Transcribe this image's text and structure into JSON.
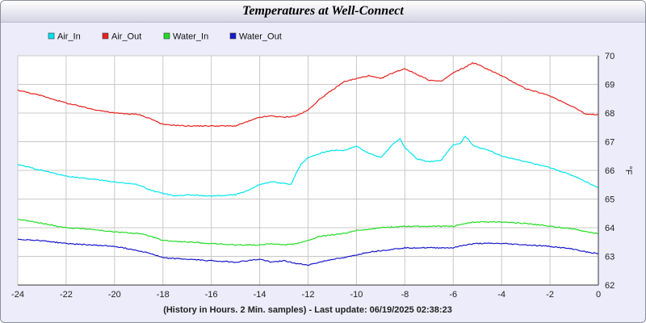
{
  "chart_data": {
    "type": "line",
    "title": "Temperatures at Well-Connect",
    "xlabel": "(History in Hours. 2 Min. samples) - Last update: 06/19/2025 02:38:23",
    "ylabel": "°F",
    "xlim": [
      -24,
      0
    ],
    "ylim": [
      62,
      70
    ],
    "xticks": [
      -24,
      -22,
      -20,
      -18,
      -16,
      -14,
      -12,
      -10,
      -8,
      -6,
      -4,
      -2,
      0
    ],
    "yticks": [
      62,
      63,
      64,
      65,
      66,
      67,
      68,
      69,
      70
    ],
    "grid": true,
    "legend_position": "top-left",
    "series": [
      {
        "name": "Air_In",
        "color": "#00e5ee",
        "x": [
          -24,
          -23,
          -22,
          -21,
          -20,
          -19,
          -18.5,
          -18,
          -17.5,
          -17,
          -16,
          -15,
          -14.5,
          -14,
          -13.5,
          -13,
          -12.7,
          -12.5,
          -12.3,
          -12,
          -11.5,
          -11,
          -10.5,
          -10,
          -9.5,
          -9,
          -8.5,
          -8.2,
          -8,
          -7.5,
          -7,
          -6.5,
          -6,
          -5.7,
          -5.5,
          -5.2,
          -5,
          -4.5,
          -4,
          -3,
          -2,
          -1,
          0
        ],
        "values": [
          66.2,
          66.0,
          65.8,
          65.7,
          65.6,
          65.5,
          65.3,
          65.2,
          65.1,
          65.15,
          65.1,
          65.15,
          65.3,
          65.5,
          65.6,
          65.55,
          65.5,
          65.9,
          66.2,
          66.45,
          66.6,
          66.7,
          66.7,
          66.85,
          66.6,
          66.45,
          66.9,
          67.1,
          66.8,
          66.4,
          66.3,
          66.35,
          66.9,
          66.95,
          67.2,
          66.9,
          66.8,
          66.7,
          66.5,
          66.3,
          66.1,
          65.8,
          65.4
        ]
      },
      {
        "name": "Air_Out",
        "color": "#e8201c",
        "x": [
          -24,
          -23,
          -22,
          -21,
          -20,
          -19,
          -18.5,
          -18,
          -17,
          -16,
          -15,
          -14.5,
          -14,
          -13.5,
          -13,
          -12.5,
          -12,
          -11.5,
          -11,
          -10.5,
          -10,
          -9.5,
          -9,
          -8.5,
          -8,
          -7.5,
          -7,
          -6.5,
          -6,
          -5.5,
          -5.2,
          -5,
          -4.5,
          -4,
          -3,
          -2,
          -1,
          -0.5,
          0
        ],
        "values": [
          68.8,
          68.6,
          68.35,
          68.15,
          68.0,
          67.95,
          67.8,
          67.6,
          67.55,
          67.55,
          67.55,
          67.7,
          67.85,
          67.9,
          67.85,
          67.9,
          68.1,
          68.5,
          68.8,
          69.1,
          69.2,
          69.3,
          69.2,
          69.4,
          69.55,
          69.35,
          69.15,
          69.1,
          69.4,
          69.6,
          69.75,
          69.7,
          69.5,
          69.3,
          68.85,
          68.6,
          68.2,
          67.95,
          67.95
        ]
      },
      {
        "name": "Water_In",
        "color": "#22dd22",
        "x": [
          -24,
          -23,
          -22,
          -21,
          -20,
          -19,
          -18.5,
          -18,
          -17,
          -16,
          -15,
          -14,
          -13.5,
          -13,
          -12.5,
          -12,
          -11.5,
          -11,
          -10.5,
          -10,
          -9.5,
          -9,
          -8,
          -7,
          -6,
          -5.5,
          -5,
          -4,
          -3,
          -2,
          -1,
          -0.5,
          0
        ],
        "values": [
          64.3,
          64.15,
          64.0,
          63.95,
          63.85,
          63.8,
          63.7,
          63.55,
          63.5,
          63.45,
          63.4,
          63.4,
          63.45,
          63.4,
          63.45,
          63.55,
          63.7,
          63.75,
          63.8,
          63.9,
          63.95,
          64.0,
          64.05,
          64.05,
          64.05,
          64.15,
          64.2,
          64.2,
          64.15,
          64.05,
          63.95,
          63.85,
          63.8
        ]
      },
      {
        "name": "Water_Out",
        "color": "#1818cc",
        "x": [
          -24,
          -23,
          -22,
          -21,
          -20,
          -19,
          -18.5,
          -18,
          -17,
          -16,
          -15,
          -14.5,
          -14,
          -13.5,
          -13,
          -12.5,
          -12,
          -11.5,
          -11,
          -10.5,
          -10,
          -9.5,
          -9,
          -8,
          -7,
          -6,
          -5.5,
          -5,
          -4,
          -3,
          -2,
          -1,
          -0.5,
          0
        ],
        "values": [
          63.6,
          63.55,
          63.45,
          63.4,
          63.35,
          63.2,
          63.1,
          62.95,
          62.9,
          62.85,
          62.8,
          62.85,
          62.9,
          62.8,
          62.85,
          62.75,
          62.7,
          62.8,
          62.9,
          62.95,
          63.05,
          63.15,
          63.2,
          63.3,
          63.3,
          63.3,
          63.4,
          63.45,
          63.45,
          63.4,
          63.35,
          63.25,
          63.15,
          63.1
        ]
      }
    ]
  }
}
